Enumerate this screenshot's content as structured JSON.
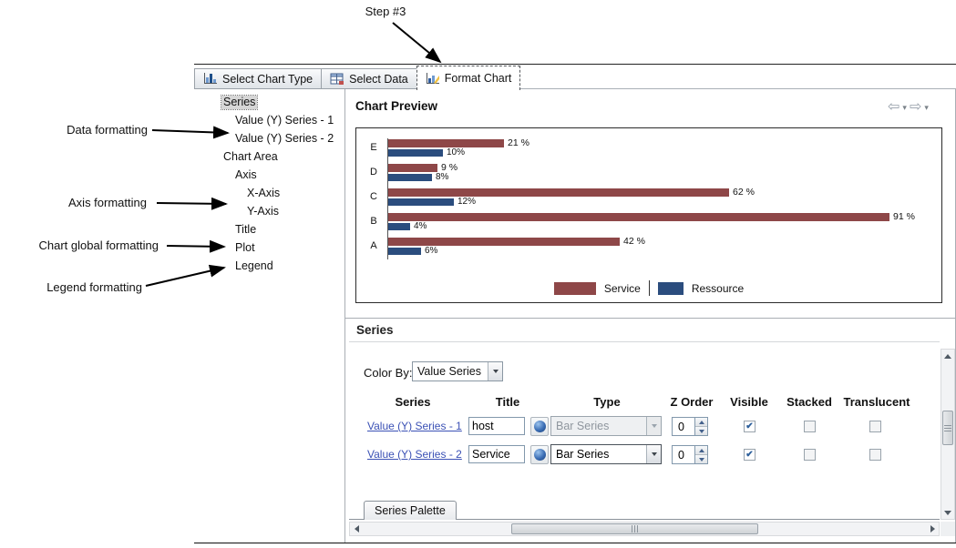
{
  "page": {
    "step_label": "Step #3"
  },
  "callouts": [
    {
      "label": "Data formatting"
    },
    {
      "label": "Axis formatting"
    },
    {
      "label": "Chart global formatting"
    },
    {
      "label": "Legend formatting"
    }
  ],
  "tabs": [
    {
      "label": "Select Chart Type",
      "active": false
    },
    {
      "label": "Select Data",
      "active": false
    },
    {
      "label": "Format Chart",
      "active": true
    }
  ],
  "tree": [
    {
      "label": "Series",
      "level": 0,
      "selected": true
    },
    {
      "label": "Value (Y) Series - 1",
      "level": 1,
      "selected": false
    },
    {
      "label": "Value (Y) Series - 2",
      "level": 1,
      "selected": false
    },
    {
      "label": "Chart Area",
      "level": 0,
      "selected": false
    },
    {
      "label": "Axis",
      "level": 1,
      "selected": false
    },
    {
      "label": "X-Axis",
      "level": 2,
      "selected": false
    },
    {
      "label": "Y-Axis",
      "level": 2,
      "selected": false
    },
    {
      "label": "Title",
      "level": 1,
      "selected": false
    },
    {
      "label": "Plot",
      "level": 1,
      "selected": false
    },
    {
      "label": "Legend",
      "level": 1,
      "selected": false
    }
  ],
  "preview": {
    "title": "Chart Preview"
  },
  "chart_data": {
    "type": "bar",
    "orientation": "horizontal",
    "title": "",
    "categories": [
      "E",
      "D",
      "C",
      "B",
      "A"
    ],
    "series": [
      {
        "name": "Service",
        "color": "#8e4748",
        "values": [
          21,
          9,
          62,
          91,
          42
        ],
        "labels": [
          "21 %",
          "9 %",
          "62 %",
          "91 %",
          "42 %"
        ]
      },
      {
        "name": "Ressource",
        "color": "#2b4d7e",
        "values": [
          10,
          8,
          12,
          4,
          6
        ],
        "labels": [
          "10%",
          "8%",
          "12%",
          "4%",
          "6%"
        ]
      }
    ],
    "xlim": [
      0,
      100
    ],
    "grid": false,
    "legend_position": "bottom"
  },
  "series_panel": {
    "title": "Series",
    "color_by": {
      "label": "Color By:",
      "value": "Value Series"
    },
    "columns": [
      "Series",
      "Title",
      "Type",
      "Z Order",
      "Visible",
      "Stacked",
      "Translucent"
    ],
    "rows": [
      {
        "series": "Value (Y) Series - 1",
        "title": "host",
        "type": "Bar Series",
        "type_enabled": false,
        "z_order": "0",
        "visible": true,
        "stacked": false,
        "translucent": false
      },
      {
        "series": "Value (Y) Series - 2",
        "title": "Service",
        "type": "Bar Series",
        "type_enabled": true,
        "z_order": "0",
        "visible": true,
        "stacked": false,
        "translucent": false
      }
    ],
    "palette_tab_label": "Series Palette"
  },
  "icons": {
    "back_arrow": "⇦",
    "forward_arrow": "⇨",
    "menu_caret": "▾"
  }
}
